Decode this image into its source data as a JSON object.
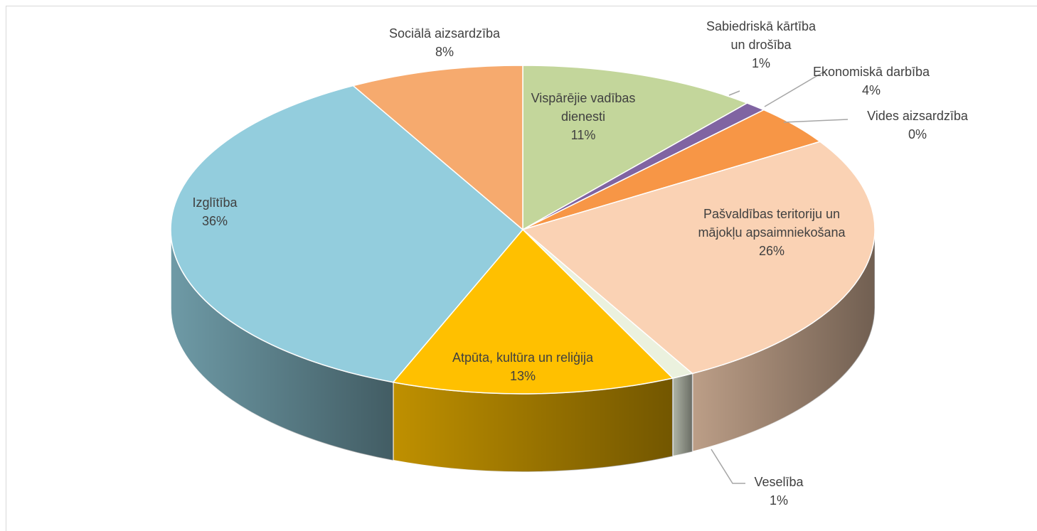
{
  "chart_data": {
    "type": "pie3d",
    "categories": [
      "Vispārējie vadības\ndienesti",
      "Sabiedriskā kārtība\nun drošība",
      "Ekonomiskā darbība",
      "Vides aizsardzība",
      "Pašvaldības teritoriju un\nmājokļu apsaimniekošana",
      "Veselība",
      "Atpūta, kultūra un reliģija",
      "Izglītība",
      "Sociālā aizsardzība"
    ],
    "values": [
      11,
      1,
      4,
      0,
      26,
      1,
      13,
      36,
      8
    ],
    "value_labels": [
      "11%",
      "1%",
      "4%",
      "0%",
      "26%",
      "1%",
      "13%",
      "36%",
      "8%"
    ],
    "colors": [
      "#c3d69b",
      "#8064a2",
      "#f79646",
      "#953735",
      "#fad2b4",
      "#ebf1de",
      "#ffc000",
      "#93cddd",
      "#f6aa6e"
    ]
  }
}
